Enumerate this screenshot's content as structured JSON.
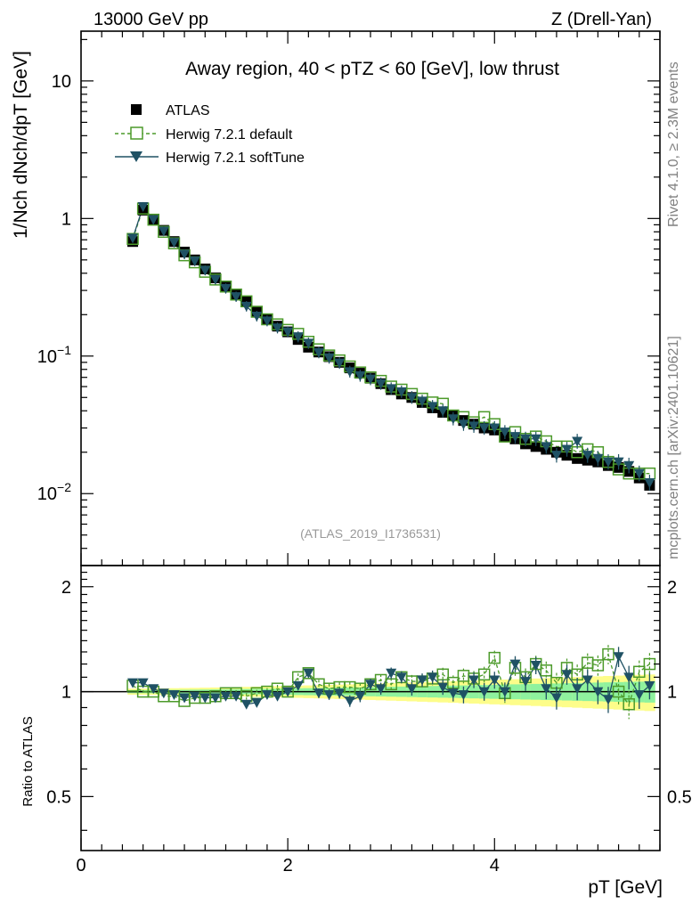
{
  "header": {
    "left": "13000 GeV pp",
    "right": "Z (Drell-Yan)"
  },
  "side_labels": {
    "rivet": "Rivet 4.1.0, ≥ 2.3M events",
    "mcplots": "mcplots.cern.ch [arXiv:2401.10621]"
  },
  "analysis_id": "(ATLAS_2019_I1736531)",
  "chart_data": [
    {
      "type": "scatter",
      "panel": "main",
      "title": "Away region, 40 < pTZ < 60 [GeV], low thrust",
      "ylabel": "1/Nch dNch/dpT [GeV]",
      "xlabel": "pT [GeV]",
      "xlim": [
        0,
        5.6
      ],
      "ylim": [
        0.003,
        23
      ],
      "yscale": "log",
      "x_ticks": [
        0,
        2,
        4
      ],
      "y_tick_labels": [
        "10",
        "1",
        "10−1",
        "10−2"
      ],
      "legend": [
        "ATLAS",
        "Herwig 7.2.1 default",
        "Herwig 7.2.1 softTune"
      ],
      "x": [
        0.5,
        0.6,
        0.7,
        0.8,
        0.9,
        1.0,
        1.1,
        1.2,
        1.3,
        1.4,
        1.5,
        1.6,
        1.7,
        1.8,
        1.9,
        2.0,
        2.1,
        2.2,
        2.3,
        2.4,
        2.5,
        2.6,
        2.7,
        2.8,
        2.9,
        3.0,
        3.1,
        3.2,
        3.3,
        3.4,
        3.5,
        3.6,
        3.7,
        3.8,
        3.9,
        4.0,
        4.1,
        4.2,
        4.3,
        4.4,
        4.5,
        4.6,
        4.7,
        4.8,
        4.9,
        5.0,
        5.1,
        5.2,
        5.3,
        5.4,
        5.5
      ],
      "series": [
        {
          "name": "ATLAS",
          "color": "#000000",
          "marker": "filled-square",
          "values": [
            0.68,
            1.15,
            0.99,
            0.82,
            0.68,
            0.57,
            0.5,
            0.43,
            0.37,
            0.32,
            0.28,
            0.25,
            0.21,
            0.185,
            0.165,
            0.15,
            0.132,
            0.116,
            0.107,
            0.099,
            0.09,
            0.082,
            0.075,
            0.069,
            0.063,
            0.057,
            0.053,
            0.05,
            0.046,
            0.042,
            0.039,
            0.037,
            0.034,
            0.032,
            0.03,
            0.029,
            0.026,
            0.025,
            0.023,
            0.022,
            0.021,
            0.02,
            0.019,
            0.018,
            0.0175,
            0.017,
            0.016,
            0.0155,
            0.0145,
            0.013,
            0.0115
          ]
        },
        {
          "name": "Herwig 7.2.1 default",
          "color": "#4c9a2a",
          "marker": "open-square",
          "values": [
            0.71,
            1.18,
            0.98,
            0.8,
            0.66,
            0.54,
            0.48,
            0.41,
            0.36,
            0.32,
            0.28,
            0.25,
            0.21,
            0.185,
            0.17,
            0.155,
            0.145,
            0.127,
            0.112,
            0.101,
            0.093,
            0.084,
            0.076,
            0.07,
            0.066,
            0.06,
            0.057,
            0.053,
            0.049,
            0.046,
            0.045,
            0.037,
            0.036,
            0.033,
            0.036,
            0.032,
            0.026,
            0.028,
            0.025,
            0.026,
            0.024,
            0.022,
            0.022,
            0.02,
            0.021,
            0.02,
            0.017,
            0.015,
            0.014,
            0.014,
            0.014
          ]
        },
        {
          "name": "Herwig 7.2.1 softTune",
          "color": "#1f5164",
          "marker": "filled-triangle-down",
          "values": [
            0.72,
            1.22,
            0.98,
            0.81,
            0.67,
            0.55,
            0.49,
            0.42,
            0.36,
            0.31,
            0.27,
            0.23,
            0.195,
            0.18,
            0.16,
            0.15,
            0.138,
            0.124,
            0.106,
            0.097,
            0.089,
            0.077,
            0.072,
            0.068,
            0.063,
            0.058,
            0.055,
            0.05,
            0.047,
            0.043,
            0.04,
            0.035,
            0.032,
            0.031,
            0.03,
            0.03,
            0.028,
            0.026,
            0.025,
            0.025,
            0.022,
            0.019,
            0.021,
            0.024,
            0.019,
            0.018,
            0.017,
            0.017,
            0.016,
            0.014,
            0.012
          ]
        }
      ]
    },
    {
      "type": "scatter",
      "panel": "ratio",
      "ylabel": "Ratio to ATLAS",
      "xlabel": "pT [GeV]",
      "xlim": [
        0,
        5.6
      ],
      "ylim": [
        0.35,
        2.3
      ],
      "y_ticks": [
        0.5,
        1,
        2
      ],
      "y_tick_labels": [
        "0.5",
        "1",
        "2"
      ],
      "x_tick_labels": [
        "0",
        "2",
        "4"
      ],
      "series": [
        {
          "name": "Herwig 7.2.1 default",
          "values": [
            1.04,
            1.0,
            1.0,
            0.97,
            0.97,
            0.94,
            0.96,
            0.96,
            0.97,
            0.99,
            0.99,
            0.97,
            0.99,
            1.0,
            1.02,
            1.0,
            1.1,
            1.13,
            1.05,
            1.02,
            1.03,
            1.03,
            1.02,
            1.05,
            1.08,
            1.05,
            1.1,
            1.07,
            1.07,
            1.09,
            1.12,
            1.06,
            1.11,
            1.09,
            1.12,
            1.25,
            0.99,
            1.17,
            1.1,
            1.2,
            1.15,
            1.06,
            1.17,
            1.12,
            1.21,
            1.19,
            1.28,
            1.0,
            0.92,
            1.14,
            1.2
          ]
        },
        {
          "name": "Herwig 7.2.1 softTune",
          "values": [
            1.06,
            1.06,
            1.02,
            0.99,
            0.98,
            0.96,
            0.97,
            0.96,
            0.96,
            0.97,
            0.97,
            0.92,
            0.93,
            0.98,
            0.97,
            1.0,
            1.04,
            1.13,
            0.99,
            0.98,
            0.99,
            0.94,
            0.97,
            1.05,
            1.02,
            1.13,
            1.1,
            1.02,
            1.08,
            1.1,
            1.03,
            0.99,
            0.98,
            1.08,
            1.0,
            1.08,
            1.0,
            1.2,
            1.07,
            1.19,
            1.02,
            0.96,
            1.12,
            1.02,
            1.08,
            1.0,
            0.95,
            1.26,
            1.1,
            0.98,
            1.04
          ]
        }
      ]
    }
  ]
}
